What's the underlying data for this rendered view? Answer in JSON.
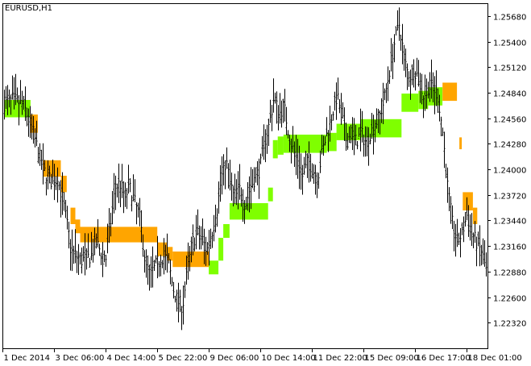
{
  "window": {
    "symbol_label": "EURUSD,H1"
  },
  "colors": {
    "background": "#ffffff",
    "axis": "#000000",
    "bars": "#000000",
    "band_up": "#7fff00",
    "band_down": "#ffa500"
  },
  "chart_data": {
    "type": "line",
    "title": "EURUSD,H1",
    "xlabel": "",
    "ylabel": "",
    "grid": false,
    "ylim": [
      1.2204,
      1.2582
    ],
    "y_ticks": [
      "1.25680",
      "1.25400",
      "1.25120",
      "1.24840",
      "1.24560",
      "1.24280",
      "1.24000",
      "1.23720",
      "1.23440",
      "1.23160",
      "1.22880",
      "1.22600",
      "1.22320"
    ],
    "x_ticks": [
      "1 Dec 2014",
      "3 Dec 06:00",
      "4 Dec 14:00",
      "5 Dec 22:00",
      "9 Dec 06:00",
      "10 Dec 14:00",
      "11 Dec 22:00",
      "15 Dec 09:00",
      "16 Dec 17:00",
      "18 Dec 01:00"
    ],
    "price_bars": {
      "x_span": [
        0,
        100
      ],
      "close_path": [
        [
          0,
          1.2472
        ],
        [
          2,
          1.2476
        ],
        [
          4,
          1.247
        ],
        [
          6,
          1.244
        ],
        [
          8,
          1.24
        ],
        [
          10,
          1.2385
        ],
        [
          11,
          1.239
        ],
        [
          12,
          1.237
        ],
        [
          13,
          1.234
        ],
        [
          14,
          1.231
        ],
        [
          16,
          1.23
        ],
        [
          18,
          1.2305
        ],
        [
          19,
          1.232
        ],
        [
          20,
          1.231
        ],
        [
          21,
          1.23
        ],
        [
          22,
          1.234
        ],
        [
          23,
          1.238
        ],
        [
          24,
          1.2385
        ],
        [
          25,
          1.237
        ],
        [
          26,
          1.238
        ],
        [
          27,
          1.2365
        ],
        [
          28,
          1.235
        ],
        [
          29,
          1.231
        ],
        [
          30,
          1.2285
        ],
        [
          31,
          1.229
        ],
        [
          32,
          1.23
        ],
        [
          33,
          1.2305
        ],
        [
          34,
          1.23
        ],
        [
          35,
          1.227
        ],
        [
          36,
          1.2255
        ],
        [
          37,
          1.225
        ],
        [
          38,
          1.229
        ],
        [
          39,
          1.232
        ],
        [
          40,
          1.233
        ],
        [
          41,
          1.2325
        ],
        [
          42,
          1.231
        ],
        [
          43,
          1.233
        ],
        [
          44,
          1.235
        ],
        [
          45,
          1.239
        ],
        [
          46,
          1.241
        ],
        [
          47,
          1.238
        ],
        [
          48,
          1.237
        ],
        [
          49,
          1.238
        ],
        [
          50,
          1.236
        ],
        [
          51,
          1.238
        ],
        [
          52,
          1.239
        ],
        [
          53,
          1.24
        ],
        [
          54,
          1.243
        ],
        [
          55,
          1.245
        ],
        [
          56,
          1.248
        ],
        [
          57,
          1.246
        ],
        [
          58,
          1.247
        ],
        [
          59,
          1.244
        ],
        [
          60,
          1.242
        ],
        [
          61,
          1.241
        ],
        [
          62,
          1.239
        ],
        [
          63,
          1.241
        ],
        [
          64,
          1.24
        ],
        [
          65,
          1.239
        ],
        [
          66,
          1.242
        ],
        [
          67,
          1.244
        ],
        [
          68,
          1.246
        ],
        [
          69,
          1.248
        ],
        [
          70,
          1.246
        ],
        [
          71,
          1.243
        ],
        [
          72,
          1.244
        ],
        [
          73,
          1.243
        ],
        [
          74,
          1.244
        ],
        [
          75,
          1.243
        ],
        [
          76,
          1.244
        ],
        [
          77,
          1.245
        ],
        [
          78,
          1.246
        ],
        [
          79,
          1.248
        ],
        [
          80,
          1.251
        ],
        [
          81,
          1.254
        ],
        [
          82,
          1.256
        ],
        [
          83,
          1.252
        ],
        [
          84,
          1.25
        ],
        [
          85,
          1.251
        ],
        [
          86,
          1.25
        ],
        [
          87,
          1.248
        ],
        [
          88,
          1.249
        ],
        [
          89,
          1.249
        ],
        [
          90,
          1.248
        ],
        [
          91,
          1.244
        ],
        [
          92,
          1.238
        ],
        [
          93,
          1.234
        ],
        [
          94,
          1.232
        ],
        [
          95,
          1.233
        ],
        [
          96,
          1.235
        ],
        [
          97,
          1.233
        ],
        [
          98,
          1.232
        ],
        [
          99,
          1.231
        ],
        [
          100,
          1.229
        ]
      ]
    },
    "series": [
      {
        "color": "#7fff00",
        "segments": [
          {
            "x0": 0,
            "x1": 5.5,
            "y_low": 1.2457,
            "y_high": 1.2476
          },
          {
            "x0": 42.5,
            "x1": 44.5,
            "y_low": 1.2285,
            "y_high": 1.23
          },
          {
            "x0": 44.5,
            "x1": 45.5,
            "y_low": 1.23,
            "y_high": 1.2325
          },
          {
            "x0": 45.5,
            "x1": 46.8,
            "y_low": 1.2325,
            "y_high": 1.234
          },
          {
            "x0": 46.8,
            "x1": 54.8,
            "y_low": 1.2345,
            "y_high": 1.2363
          },
          {
            "x0": 54.8,
            "x1": 55.8,
            "y_low": 1.2365,
            "y_high": 1.238
          },
          {
            "x0": 55.8,
            "x1": 56.8,
            "y_low": 1.2412,
            "y_high": 1.2432
          },
          {
            "x0": 56.8,
            "x1": 58,
            "y_low": 1.2416,
            "y_high": 1.2436
          },
          {
            "x0": 58,
            "x1": 67,
            "y_low": 1.2418,
            "y_high": 1.2438
          },
          {
            "x0": 67,
            "x1": 69,
            "y_low": 1.242,
            "y_high": 1.244
          },
          {
            "x0": 69,
            "x1": 74,
            "y_low": 1.2432,
            "y_high": 1.245
          },
          {
            "x0": 74,
            "x1": 82.5,
            "y_low": 1.2435,
            "y_high": 1.2455
          },
          {
            "x0": 82.5,
            "x1": 86,
            "y_low": 1.2463,
            "y_high": 1.2483
          },
          {
            "x0": 86,
            "x1": 88,
            "y_low": 1.2466,
            "y_high": 1.2486
          },
          {
            "x0": 88,
            "x1": 91,
            "y_low": 1.247,
            "y_high": 1.249
          }
        ]
      },
      {
        "color": "#ffa500",
        "segments": [
          {
            "x0": 5.5,
            "x1": 7,
            "y_low": 1.244,
            "y_high": 1.246
          },
          {
            "x0": 8.2,
            "x1": 11.8,
            "y_low": 1.2392,
            "y_high": 1.241
          },
          {
            "x0": 11.8,
            "x1": 13,
            "y_low": 1.2375,
            "y_high": 1.2393
          },
          {
            "x0": 13.8,
            "x1": 14.8,
            "y_low": 1.234,
            "y_high": 1.2358
          },
          {
            "x0": 14.8,
            "x1": 15.8,
            "y_low": 1.233,
            "y_high": 1.2345
          },
          {
            "x0": 15.8,
            "x1": 31.8,
            "y_low": 1.232,
            "y_high": 1.2337
          },
          {
            "x0": 31.8,
            "x1": 33.8,
            "y_low": 1.2305,
            "y_high": 1.232
          },
          {
            "x0": 33.8,
            "x1": 35,
            "y_low": 1.23,
            "y_high": 1.2315
          },
          {
            "x0": 35,
            "x1": 42.5,
            "y_low": 1.2293,
            "y_high": 1.231
          },
          {
            "x0": 91,
            "x1": 94,
            "y_low": 1.2475,
            "y_high": 1.2495
          },
          {
            "x0": 94.5,
            "x1": 95,
            "y_low": 1.2422,
            "y_high": 1.2435
          },
          {
            "x0": 95.2,
            "x1": 97.3,
            "y_low": 1.2355,
            "y_high": 1.2375
          },
          {
            "x0": 97.3,
            "x1": 98.2,
            "y_low": 1.234,
            "y_high": 1.2358
          }
        ]
      }
    ]
  }
}
